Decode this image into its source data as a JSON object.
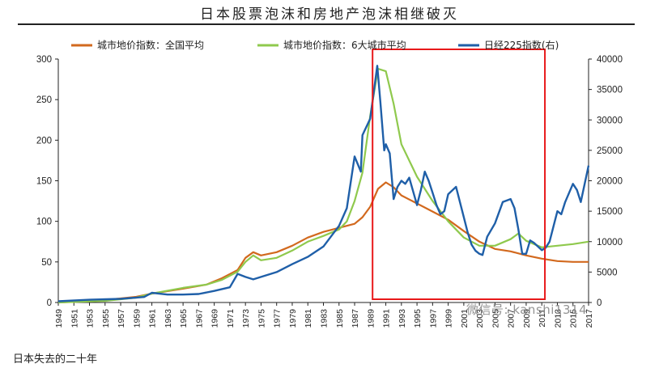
{
  "page": {
    "caption": "日本失去的二十年",
    "watermark": "微信号: kanshi1314"
  },
  "chart_data": {
    "type": "line",
    "title": "日本股票泡沫和房地产泡沫相继破灭",
    "xlabel": "",
    "ylabel_left": "",
    "ylabel_right": "",
    "x_ticks": [
      1949,
      1951,
      1953,
      1955,
      1957,
      1959,
      1961,
      1963,
      1965,
      1967,
      1969,
      1971,
      1973,
      1975,
      1977,
      1979,
      1981,
      1983,
      1985,
      1987,
      1989,
      1991,
      1993,
      1995,
      1997,
      1999,
      2001,
      2003,
      2005,
      2007,
      2009,
      2011,
      2013,
      2015,
      2017
    ],
    "x_range": [
      1949,
      2017
    ],
    "ylim_left": [
      0,
      300
    ],
    "ylim_right": [
      0,
      40000
    ],
    "yticks_left": [
      0,
      50,
      100,
      150,
      200,
      250,
      300
    ],
    "yticks_right": [
      0,
      5000,
      10000,
      15000,
      20000,
      25000,
      30000,
      35000,
      40000
    ],
    "legend_position": "top",
    "highlight_box_x_range": [
      1989.3,
      2011.4
    ],
    "highlight_color": "#e8191a",
    "series": [
      {
        "name": "城市地价指数：全国平均",
        "axis": "left",
        "color": "#d2691e",
        "x": [
          1949,
          1955,
          1959,
          1961,
          1965,
          1968,
          1970,
          1972,
          1973,
          1974,
          1975,
          1977,
          1979,
          1981,
          1983,
          1985,
          1987,
          1988,
          1989,
          1990,
          1991,
          1992,
          1993,
          1995,
          1997,
          1999,
          2001,
          2003,
          2005,
          2007,
          2009,
          2011,
          2013,
          2015,
          2017
        ],
        "y": [
          0,
          3,
          7,
          11,
          17,
          22,
          30,
          40,
          55,
          62,
          58,
          62,
          70,
          80,
          87,
          92,
          97,
          105,
          118,
          140,
          148,
          142,
          132,
          122,
          112,
          102,
          88,
          75,
          66,
          63,
          58,
          54,
          51,
          50,
          50
        ]
      },
      {
        "name": "城市地价指数：6大城市平均",
        "axis": "left",
        "color": "#8fc94d",
        "x": [
          1949,
          1955,
          1959,
          1961,
          1965,
          1968,
          1970,
          1972,
          1973,
          1974,
          1975,
          1977,
          1979,
          1981,
          1983,
          1985,
          1986,
          1987,
          1988,
          1989,
          1990,
          1991,
          1992,
          1993,
          1995,
          1997,
          1999,
          2001,
          2003,
          2005,
          2007,
          2008,
          2009,
          2011,
          2013,
          2015,
          2017
        ],
        "y": [
          0,
          2,
          6,
          11,
          18,
          22,
          28,
          38,
          50,
          58,
          52,
          55,
          64,
          75,
          82,
          90,
          100,
          125,
          160,
          230,
          288,
          285,
          245,
          195,
          155,
          125,
          100,
          80,
          70,
          70,
          78,
          85,
          76,
          68,
          70,
          72,
          75
        ]
      },
      {
        "name": "日经225指数(右)",
        "axis": "right",
        "color": "#1f5fa8",
        "x": [
          1949,
          1953,
          1957,
          1960,
          1961,
          1963,
          1965,
          1967,
          1969,
          1971,
          1972,
          1973,
          1974,
          1975,
          1977,
          1979,
          1981,
          1983,
          1985,
          1986,
          1987,
          1987.8,
          1988,
          1989,
          1989.9,
          1990.3,
          1990.8,
          1991,
          1991.5,
          1992,
          1992.5,
          1993,
          1993.5,
          1994,
          1995,
          1995.5,
          1996,
          1996.5,
          1997,
          1997.5,
          1998,
          1998.5,
          1999,
          2000,
          2000.5,
          2001,
          2001.5,
          2002,
          2002.5,
          2003,
          2003.4,
          2004,
          2005,
          2006,
          2007,
          2007.5,
          2008,
          2008.5,
          2009,
          2009.5,
          2010,
          2011,
          2011.5,
          2012,
          2013,
          2013.5,
          2014,
          2015,
          2015.5,
          2016,
          2017
        ],
        "y": [
          200,
          450,
          600,
          900,
          1600,
          1300,
          1300,
          1400,
          1900,
          2500,
          4700,
          4200,
          3800,
          4200,
          5000,
          6300,
          7500,
          9200,
          12600,
          15500,
          24000,
          21500,
          27500,
          30200,
          38900,
          33000,
          25000,
          26000,
          24500,
          17000,
          19000,
          20000,
          19500,
          20500,
          16000,
          18500,
          21500,
          20000,
          18000,
          16000,
          14500,
          15000,
          17800,
          19000,
          16500,
          14000,
          11500,
          9500,
          8500,
          8000,
          7800,
          10800,
          13000,
          16500,
          17000,
          15500,
          12000,
          8000,
          8000,
          10200,
          9800,
          8600,
          9000,
          10000,
          15000,
          14500,
          16500,
          19500,
          18500,
          16500,
          22500
        ]
      }
    ]
  }
}
